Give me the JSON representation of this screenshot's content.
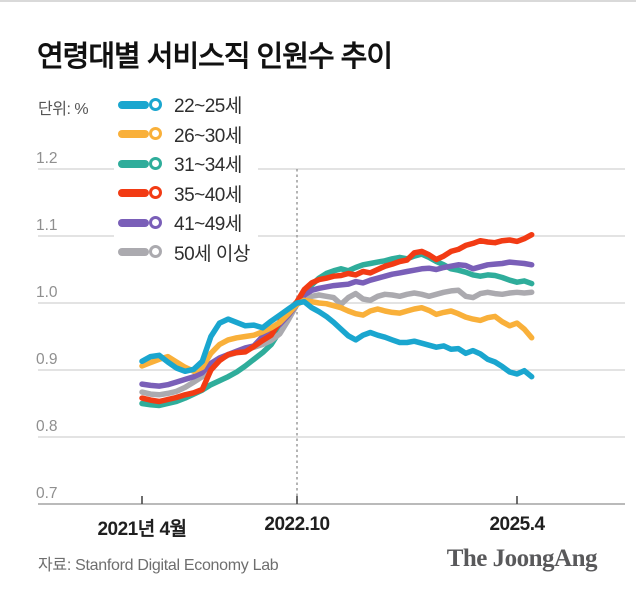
{
  "header": {
    "title": "연령대별 서비스직 인원수 추이",
    "unit_label": "단위: %"
  },
  "footer": {
    "source": "자료: Stanford Digital Economy Lab",
    "logo": "The JoongAng"
  },
  "chart_data": {
    "type": "line",
    "title": "연령대별 서비스직 인원수 추이",
    "unit": "%",
    "grid": "horizontal",
    "legend_position": "top-left",
    "x_axis": {
      "start": "2021-04",
      "end": "2025-06",
      "step": "month",
      "tick_labels": [
        "2021년 4월",
        "2022.10",
        "2025.4"
      ],
      "tick_month_index": [
        0,
        18,
        48
      ]
    },
    "y_axis": {
      "min": 0.7,
      "max": 1.2,
      "tick_labels": [
        "1.2",
        "1.1",
        "1.0",
        "0.9",
        "0.8",
        "0.7"
      ]
    },
    "reference_line": {
      "at_label": "2022.10",
      "month_index": 18,
      "style": "dashed",
      "color": "#9b9b9b"
    },
    "draw_order": [
      2,
      5,
      4,
      3,
      1,
      0
    ],
    "series": [
      {
        "id": "age-22-25",
        "name": "22~25세",
        "color": "#1AA6CF",
        "values": [
          0.913,
          0.92,
          0.922,
          0.912,
          0.903,
          0.898,
          0.901,
          0.913,
          0.95,
          0.97,
          0.976,
          0.971,
          0.966,
          0.967,
          0.963,
          0.973,
          0.982,
          0.991,
          1.0,
          1.002,
          0.993,
          0.987,
          0.98,
          0.971,
          0.961,
          0.951,
          0.945,
          0.952,
          0.956,
          0.952,
          0.949,
          0.945,
          0.941,
          0.941,
          0.943,
          0.94,
          0.937,
          0.934,
          0.936,
          0.931,
          0.932,
          0.925,
          0.929,
          0.924,
          0.916,
          0.912,
          0.905,
          0.897,
          0.894,
          0.899,
          0.89
        ]
      },
      {
        "id": "age-26-30",
        "name": "26~30세",
        "color": "#F9B03A",
        "values": [
          0.906,
          0.911,
          0.916,
          0.92,
          0.912,
          0.904,
          0.898,
          0.904,
          0.925,
          0.938,
          0.945,
          0.948,
          0.95,
          0.952,
          0.957,
          0.963,
          0.971,
          0.984,
          0.998,
          1.004,
          1.002,
          1.0,
          0.999,
          0.996,
          0.993,
          0.988,
          0.984,
          0.982,
          0.988,
          0.991,
          0.988,
          0.986,
          0.985,
          0.988,
          0.991,
          0.993,
          0.989,
          0.983,
          0.986,
          0.988,
          0.984,
          0.979,
          0.976,
          0.974,
          0.978,
          0.98,
          0.972,
          0.966,
          0.97,
          0.961,
          0.948
        ]
      },
      {
        "id": "age-31-34",
        "name": "31~34세",
        "color": "#2FAD9B",
        "values": [
          0.85,
          0.848,
          0.847,
          0.85,
          0.853,
          0.858,
          0.864,
          0.87,
          0.878,
          0.884,
          0.89,
          0.897,
          0.906,
          0.916,
          0.926,
          0.938,
          0.958,
          0.98,
          1.0,
          1.014,
          1.027,
          1.037,
          1.044,
          1.048,
          1.051,
          1.048,
          1.053,
          1.057,
          1.059,
          1.061,
          1.063,
          1.066,
          1.068,
          1.066,
          1.07,
          1.073,
          1.068,
          1.062,
          1.057,
          1.051,
          1.049,
          1.046,
          1.042,
          1.04,
          1.042,
          1.041,
          1.038,
          1.034,
          1.031,
          1.033,
          1.029
        ]
      },
      {
        "id": "age-35-40",
        "name": "35~40세",
        "color": "#F23B14",
        "values": [
          0.858,
          0.855,
          0.853,
          0.856,
          0.859,
          0.863,
          0.866,
          0.871,
          0.9,
          0.914,
          0.923,
          0.926,
          0.927,
          0.935,
          0.944,
          0.952,
          0.972,
          0.988,
          1.002,
          1.02,
          1.03,
          1.035,
          1.037,
          1.04,
          1.041,
          1.044,
          1.042,
          1.047,
          1.045,
          1.05,
          1.055,
          1.058,
          1.062,
          1.064,
          1.075,
          1.077,
          1.072,
          1.065,
          1.07,
          1.077,
          1.08,
          1.086,
          1.089,
          1.093,
          1.091,
          1.09,
          1.093,
          1.094,
          1.092,
          1.096,
          1.102
        ]
      },
      {
        "id": "age-41-49",
        "name": "41~49세",
        "color": "#7A5FB8",
        "values": [
          0.879,
          0.877,
          0.876,
          0.878,
          0.882,
          0.886,
          0.89,
          0.896,
          0.91,
          0.918,
          0.923,
          0.928,
          0.933,
          0.936,
          0.95,
          0.958,
          0.968,
          0.982,
          0.998,
          1.012,
          1.019,
          1.022,
          1.024,
          1.026,
          1.027,
          1.028,
          1.032,
          1.03,
          1.034,
          1.037,
          1.04,
          1.043,
          1.045,
          1.047,
          1.049,
          1.051,
          1.052,
          1.05,
          1.053,
          1.055,
          1.057,
          1.056,
          1.051,
          1.054,
          1.057,
          1.058,
          1.059,
          1.061,
          1.06,
          1.059,
          1.057
        ]
      },
      {
        "id": "age-50-plus",
        "name": "50세 이상",
        "color": "#ABAAAF",
        "values": [
          0.867,
          0.864,
          0.863,
          0.865,
          0.868,
          0.874,
          0.882,
          0.89,
          0.908,
          0.916,
          0.922,
          0.926,
          0.93,
          0.934,
          0.938,
          0.944,
          0.954,
          0.975,
          0.998,
          1.008,
          1.01,
          1.012,
          1.01,
          1.008,
          0.998,
          1.008,
          1.014,
          1.006,
          1.004,
          1.01,
          1.013,
          1.012,
          1.01,
          1.013,
          1.015,
          1.013,
          1.01,
          1.013,
          1.016,
          1.018,
          1.019,
          1.01,
          1.008,
          1.014,
          1.016,
          1.014,
          1.013,
          1.015,
          1.016,
          1.015,
          1.016
        ]
      }
    ]
  }
}
